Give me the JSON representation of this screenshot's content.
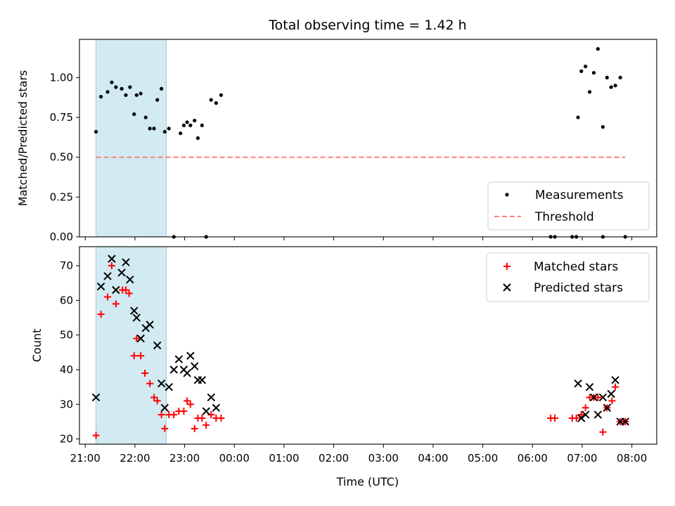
{
  "chart_data": [
    {
      "type": "scatter",
      "title": "Total observing time = 1.42 h",
      "ylabel": "Matched/Predicted stars",
      "xlabel": "",
      "ylim": [
        0,
        1.24
      ],
      "xlim": [
        "20:53",
        "08:30"
      ],
      "yticks": [
        "0.00",
        "0.25",
        "0.50",
        "0.75",
        "1.00"
      ],
      "grid": false,
      "legend_placement": "lower-right",
      "highlight_span": [
        "21:13",
        "22:38"
      ],
      "series": [
        {
          "name": "Measurements",
          "marker": "dot",
          "color": "#000000",
          "x": [
            "21:13",
            "21:19",
            "21:27",
            "21:32",
            "21:37",
            "21:44",
            "21:49",
            "21:54",
            "21:59",
            "22:02",
            "22:07",
            "22:13",
            "22:18",
            "22:23",
            "22:27",
            "22:32",
            "22:36",
            "22:41",
            "22:47",
            "22:55",
            "22:59",
            "23:03",
            "23:07",
            "23:12",
            "23:16",
            "23:21",
            "23:26",
            "23:32",
            "23:38",
            "23:44",
            "06:55",
            "06:59",
            "07:04",
            "07:09",
            "07:14",
            "07:19",
            "07:25",
            "07:30",
            "07:35",
            "07:40",
            "07:46",
            "07:52"
          ],
          "y": [
            0.66,
            0.88,
            0.91,
            0.97,
            0.94,
            0.93,
            0.89,
            0.94,
            0.77,
            0.89,
            0.9,
            0.75,
            0.68,
            0.68,
            0.86,
            0.93,
            0.66,
            0.68,
            0.0,
            0.65,
            0.7,
            0.72,
            0.7,
            0.73,
            0.62,
            0.7,
            0.0,
            0.86,
            0.84,
            0.89,
            0.75,
            1.04,
            1.07,
            0.91,
            1.03,
            1.18,
            0.69,
            1.0,
            0.94,
            0.95,
            1.0,
            0.0
          ]
        },
        {
          "name": "Threshold",
          "marker": "dashed-line",
          "color": "#ff7f7f",
          "x": [
            "21:13",
            "07:52"
          ],
          "y": [
            0.5,
            0.5
          ]
        }
      ],
      "extra_zero_points": [
        "06:22",
        "06:27",
        "06:48",
        "06:53",
        "07:25"
      ]
    },
    {
      "type": "scatter",
      "title": "",
      "ylabel": "Count",
      "xlabel": "Time (UTC)",
      "ylim": [
        18.5,
        75.5
      ],
      "xlim": [
        "20:53",
        "08:30"
      ],
      "yticks": [
        "20",
        "30",
        "40",
        "50",
        "60",
        "70"
      ],
      "xticks": [
        "21:00",
        "22:00",
        "23:00",
        "00:00",
        "01:00",
        "02:00",
        "03:00",
        "04:00",
        "05:00",
        "06:00",
        "07:00",
        "08:00"
      ],
      "grid": false,
      "legend_placement": "top-right",
      "highlight_span": [
        "21:13",
        "22:38"
      ],
      "series": [
        {
          "name": "Matched stars",
          "marker": "plus",
          "color": "#ff0000",
          "x": [
            "21:13",
            "21:19",
            "21:27",
            "21:32",
            "21:37",
            "21:45",
            "21:49",
            "21:53",
            "21:59",
            "22:02",
            "22:07",
            "22:12",
            "22:18",
            "22:23",
            "22:27",
            "22:32",
            "22:36",
            "22:41",
            "22:47",
            "22:53",
            "22:59",
            "23:03",
            "23:07",
            "23:12",
            "23:16",
            "23:21",
            "23:26",
            "23:32",
            "23:38",
            "23:44",
            "06:22",
            "06:27",
            "06:48",
            "06:53",
            "06:59",
            "07:04",
            "07:09",
            "07:14",
            "07:19",
            "07:25",
            "07:30",
            "07:36",
            "07:40",
            "07:46",
            "07:52"
          ],
          "y": [
            21,
            56,
            61,
            70,
            59,
            63,
            63,
            62,
            44,
            49,
            44,
            39,
            36,
            32,
            31,
            27,
            23,
            27,
            27,
            28,
            28,
            31,
            30,
            23,
            26,
            26,
            24,
            27,
            26,
            26,
            26,
            26,
            26,
            26,
            27,
            29,
            32,
            32,
            32,
            22,
            29,
            31,
            35,
            25,
            25
          ]
        },
        {
          "name": "Predicted stars",
          "marker": "x",
          "color": "#000000",
          "x": [
            "21:13",
            "21:19",
            "21:27",
            "21:32",
            "21:37",
            "21:44",
            "21:49",
            "21:54",
            "21:59",
            "22:02",
            "22:07",
            "22:13",
            "22:18",
            "22:27",
            "22:32",
            "22:36",
            "22:41",
            "22:47",
            "22:53",
            "22:59",
            "23:03",
            "23:07",
            "23:12",
            "23:16",
            "23:21",
            "23:26",
            "23:32",
            "23:38",
            "06:55",
            "06:59",
            "07:04",
            "07:09",
            "07:14",
            "07:19",
            "07:25",
            "07:30",
            "07:35",
            "07:40",
            "07:46",
            "07:52"
          ],
          "y": [
            32,
            64,
            67,
            72,
            63,
            68,
            71,
            66,
            57,
            55,
            49,
            52,
            53,
            47,
            36,
            29,
            35,
            40,
            43,
            40,
            39,
            44,
            41,
            37,
            37,
            28,
            32,
            29,
            36,
            26,
            27,
            35,
            32,
            27,
            32,
            29,
            33,
            37,
            25,
            25
          ]
        }
      ]
    }
  ]
}
